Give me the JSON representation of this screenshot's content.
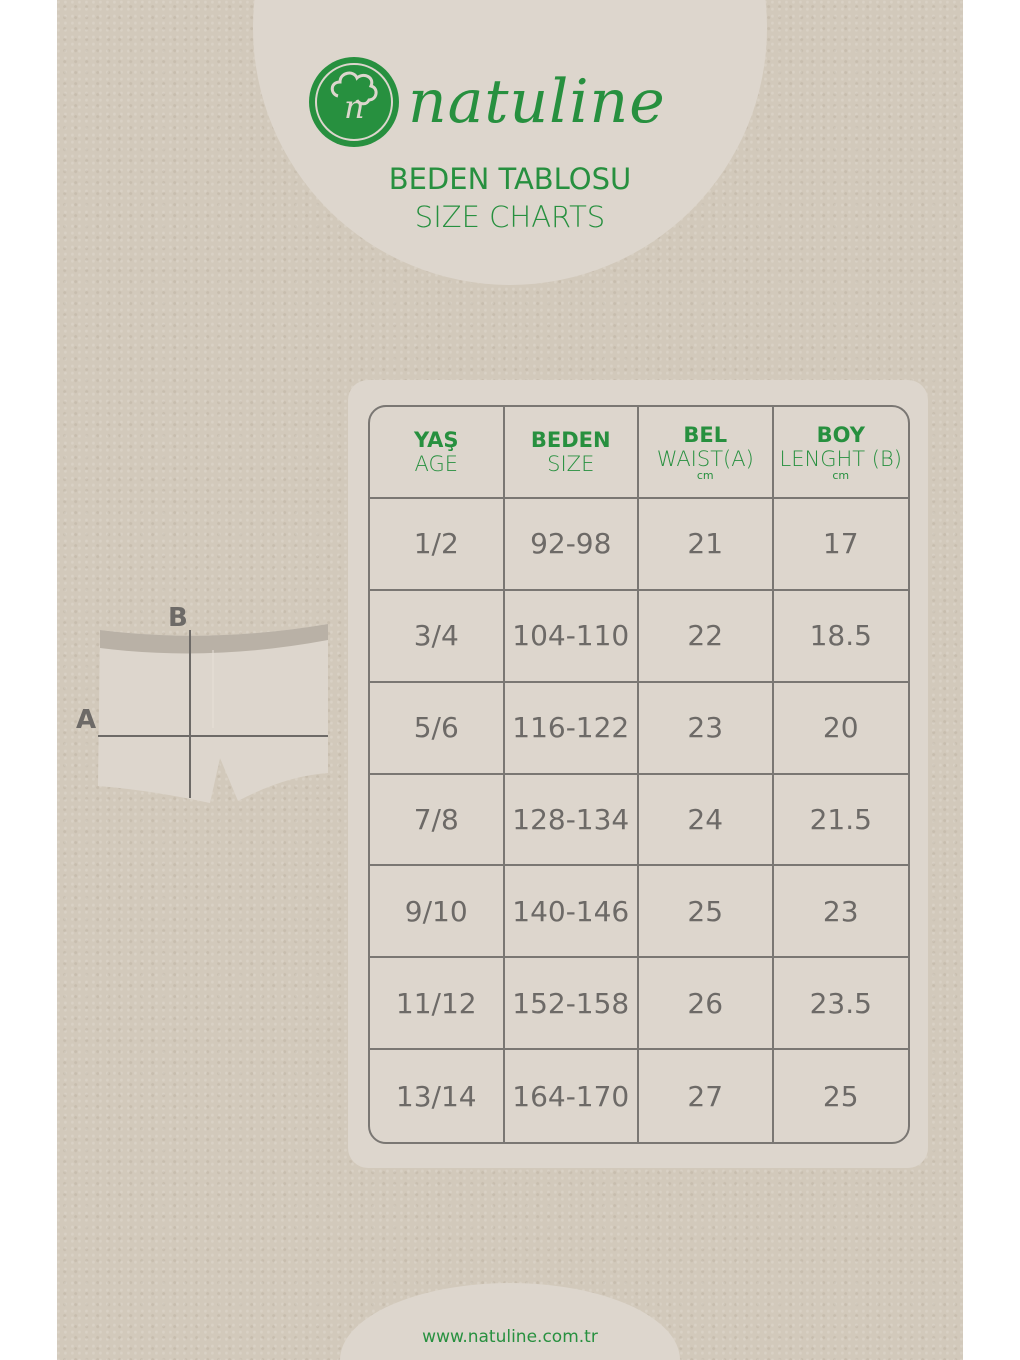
{
  "brand": {
    "name": "natuline",
    "logo_letters": "n"
  },
  "title": {
    "tr": "BEDEN TABLOSU",
    "en": "SIZE CHARTS"
  },
  "diagram": {
    "label_a": "A",
    "label_b": "B"
  },
  "table": {
    "headers": [
      {
        "tr": "YAŞ",
        "en": "AGE",
        "unit": ""
      },
      {
        "tr": "BEDEN",
        "en": "SIZE",
        "unit": ""
      },
      {
        "tr": "BEL",
        "en": "WAIST(A)",
        "unit": "cm"
      },
      {
        "tr": "BOY",
        "en": "LENGHT (B)",
        "unit": "cm"
      }
    ],
    "rows": [
      [
        "1/2",
        "92-98",
        "21",
        "17"
      ],
      [
        "3/4",
        "104-110",
        "22",
        "18.5"
      ],
      [
        "5/6",
        "116-122",
        "23",
        "20"
      ],
      [
        "7/8",
        "128-134",
        "24",
        "21.5"
      ],
      [
        "9/10",
        "140-146",
        "25",
        "23"
      ],
      [
        "11/12",
        "152-158",
        "26",
        "23.5"
      ],
      [
        "13/14",
        "164-170",
        "27",
        "25"
      ]
    ]
  },
  "website": "www.natuline.com.tr",
  "colors": {
    "green": "#27903f",
    "text": "#6d6a67",
    "paper": "#d2c9bb",
    "panel": "#ddd6cd"
  }
}
